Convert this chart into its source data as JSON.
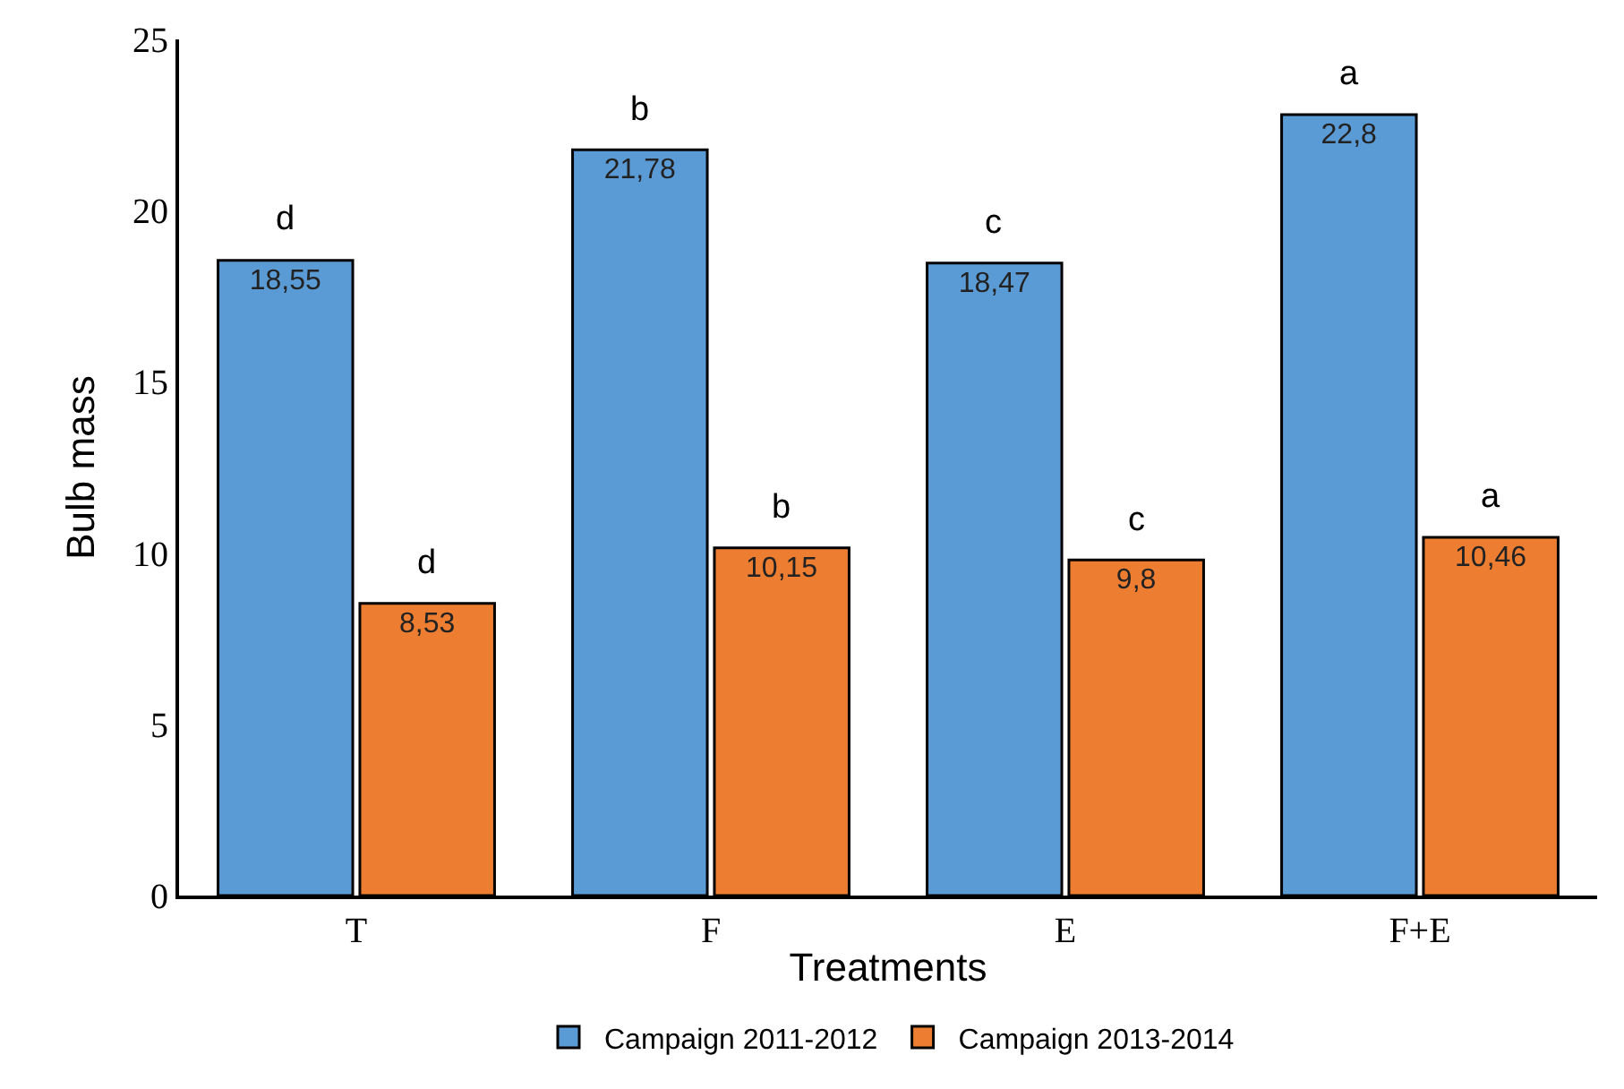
{
  "chart_data": {
    "type": "bar",
    "xlabel": "Treatments",
    "ylabel": "Bulb mass",
    "categories": [
      "T",
      "F",
      "E",
      "F+E"
    ],
    "series": [
      {
        "name": "Campaign 2011-2012",
        "color": "#5b9bd5",
        "values": [
          18.55,
          21.78,
          18.47,
          22.8
        ],
        "value_labels": [
          "18,55",
          "21,78",
          "18,47",
          "22,8"
        ]
      },
      {
        "name": "Campaign 2013-2014",
        "color": "#ed7d31",
        "values": [
          8.53,
          10.15,
          9.8,
          10.46
        ],
        "value_labels": [
          "8,53",
          "10,15",
          "9,8",
          "10,46"
        ]
      }
    ],
    "annotations": [
      {
        "text": "d",
        "x": "T",
        "y": 18.55
      },
      {
        "text": "d",
        "x": "T",
        "y": 8.53
      },
      {
        "text": "b",
        "x": "F",
        "y": 21.78
      },
      {
        "text": "b",
        "x": "F",
        "y": 10.15
      },
      {
        "text": "c",
        "x": "E",
        "y": 18.47
      },
      {
        "text": "c",
        "x": "E",
        "y": 9.8
      },
      {
        "text": "a",
        "x": "F+E",
        "y": 22.8
      },
      {
        "text": "a",
        "x": "F+E",
        "y": 10.46
      }
    ],
    "ylim": [
      0,
      25
    ],
    "yticks": [
      0,
      5,
      10,
      15,
      20,
      25
    ],
    "legend": "bottom"
  }
}
